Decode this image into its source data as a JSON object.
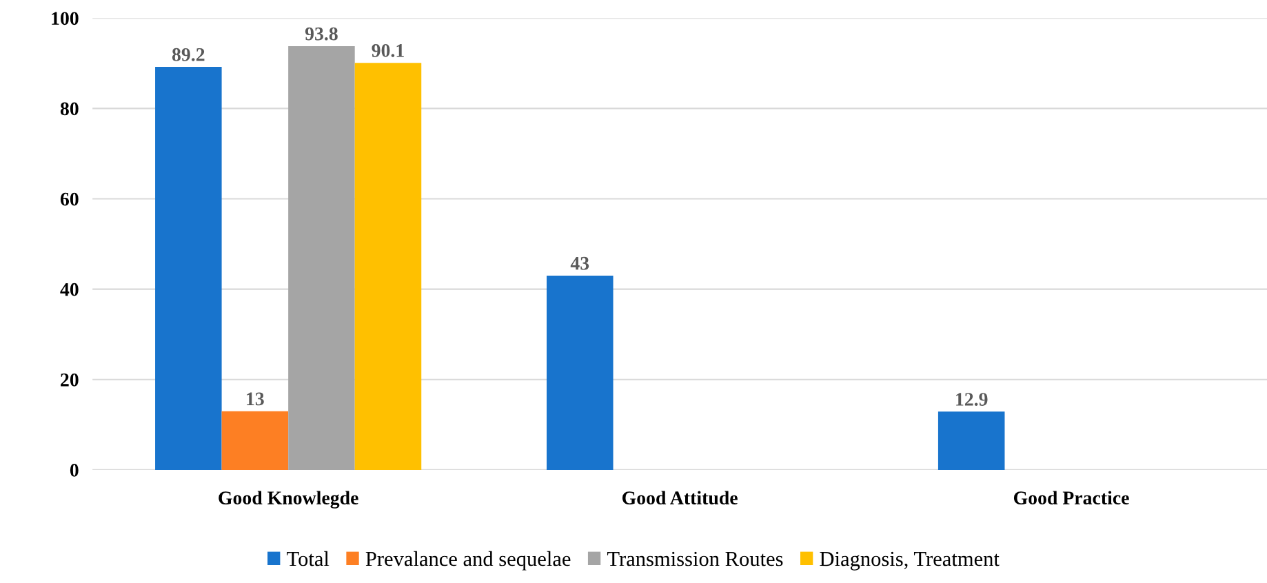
{
  "chart_data": {
    "type": "bar",
    "categories": [
      "Good Knowlegde",
      "Good Attitude",
      "Good Practice"
    ],
    "series": [
      {
        "name": "Total",
        "color": "#1874cd",
        "values": [
          89.2,
          43,
          12.9
        ]
      },
      {
        "name": "Prevalance and sequelae",
        "color": "#fd7f23",
        "values": [
          13,
          null,
          null
        ]
      },
      {
        "name": "Transmission Routes",
        "color": "#a5a5a5",
        "values": [
          93.8,
          null,
          null
        ]
      },
      {
        "name": "Diagnosis, Treatment",
        "color": "#ffc000",
        "values": [
          90.1,
          null,
          null
        ]
      }
    ],
    "ylim": [
      0,
      100
    ],
    "yticks": [
      0,
      20,
      40,
      60,
      80,
      100
    ],
    "grid": "y",
    "legend": "bottom",
    "data_labels": true
  }
}
